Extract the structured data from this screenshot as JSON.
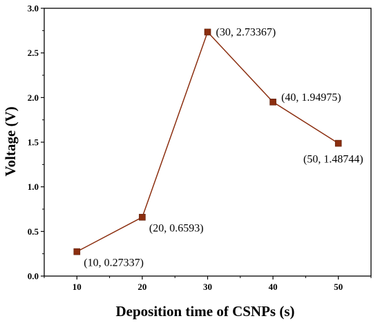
{
  "chart_data": {
    "type": "line",
    "xlabel": "Deposition time of CSNPs (s)",
    "ylabel": "Voltage (V)",
    "x": [
      10,
      20,
      30,
      40,
      50
    ],
    "series": [
      {
        "values": [
          0.27337,
          0.6593,
          2.73367,
          1.94975,
          1.48744
        ],
        "color": "#8b2e0f",
        "marker": "square"
      }
    ],
    "data_labels": [
      "(10, 0.27337)",
      "(20, 0.6593)",
      "(30, 2.73367)",
      "(40, 1.94975)",
      "(50, 1.48744)"
    ],
    "x_ticks": [
      "10",
      "20",
      "30",
      "40",
      "50"
    ],
    "y_ticks": [
      "0.0",
      "0.5",
      "1.0",
      "1.5",
      "2.0",
      "2.5",
      "3.0"
    ],
    "xlim": [
      5,
      55
    ],
    "ylim": [
      0,
      3
    ],
    "grid": false,
    "legend": "none"
  }
}
